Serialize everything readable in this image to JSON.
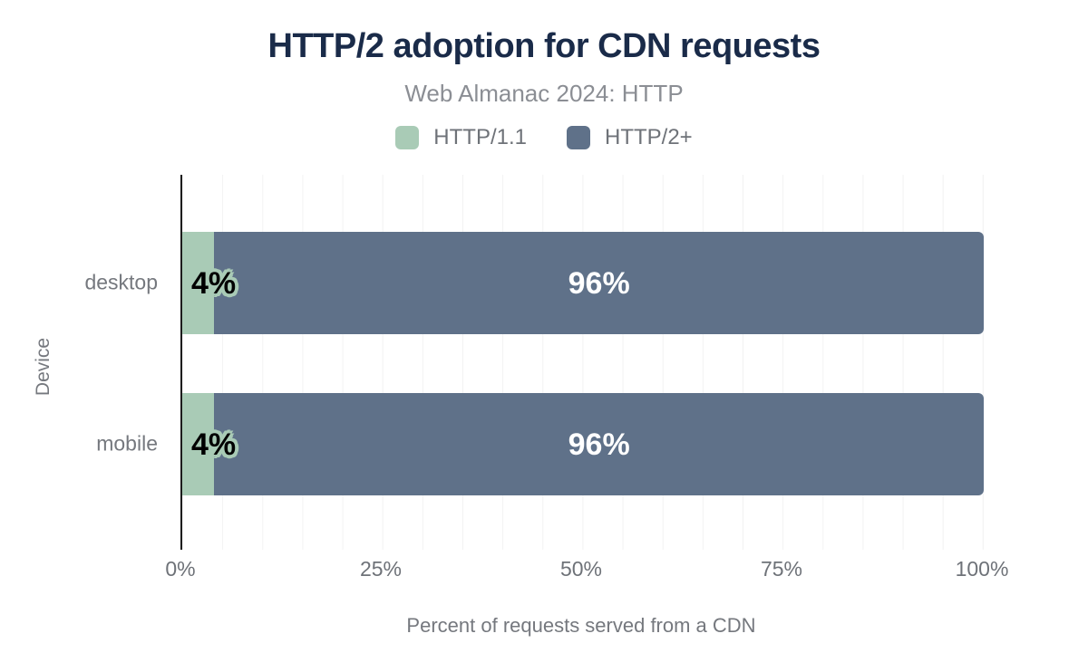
{
  "chart_data": {
    "type": "bar",
    "orientation": "horizontal",
    "stacked": true,
    "title": "HTTP/2 adoption for CDN requests",
    "subtitle": "Web Almanac 2024: HTTP",
    "xlabel": "Percent of requests served from a CDN",
    "ylabel": "Device",
    "categories": [
      "desktop",
      "mobile"
    ],
    "series": [
      {
        "name": "HTTP/1.1",
        "color": "#a9cbb6",
        "values": [
          4,
          4
        ],
        "labels": [
          "4%",
          "4%"
        ]
      },
      {
        "name": "HTTP/2+",
        "color": "#5f7189",
        "values": [
          96,
          96
        ],
        "labels": [
          "96%",
          "96%"
        ]
      }
    ],
    "xlim": [
      0,
      100
    ],
    "x_ticks": [
      "0%",
      "25%",
      "50%",
      "75%",
      "100%"
    ],
    "grid": {
      "vertical": true,
      "interval_percent": 5,
      "color": "#f2f2f2"
    },
    "legend_position": "top",
    "colors": {
      "title": "#1a2b49",
      "muted_text": "#75787e",
      "axis_line": "#1c1c1c",
      "bar_label_on_dark_segment": "#ffffff",
      "bar_label_on_light_segment": "#000000"
    }
  }
}
